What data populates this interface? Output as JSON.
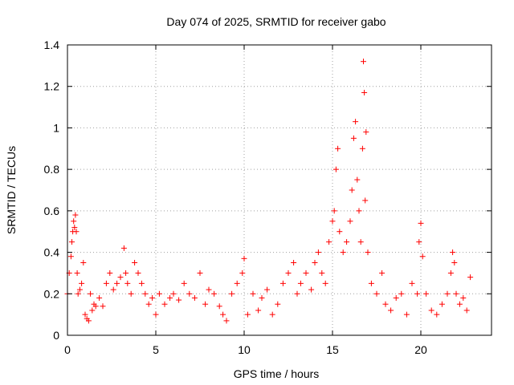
{
  "chart_data": {
    "type": "scatter",
    "title": "Day 074 of 2025, SRMTID for receiver gabo",
    "xlabel": "GPS time / hours",
    "ylabel": "SRMTID / TECUs",
    "xlim": [
      0,
      24
    ],
    "ylim": [
      0,
      1.4
    ],
    "xticks": [
      0,
      5,
      10,
      15,
      20
    ],
    "xtick_labels": [
      "0",
      "5",
      "10",
      "15",
      "20"
    ],
    "yticks": [
      0,
      0.2,
      0.4,
      0.6,
      0.8,
      1,
      1.2,
      1.4
    ],
    "ytick_labels": [
      "0",
      "0.2",
      "0.4",
      "0.6",
      "0.8",
      "1",
      "1.2",
      "1.4"
    ],
    "grid": true,
    "marker": "+",
    "color": "#ff0000",
    "series": [
      {
        "name": "SRMTID",
        "x": [
          0.0,
          0.1,
          0.2,
          0.25,
          0.3,
          0.35,
          0.4,
          0.45,
          0.5,
          0.55,
          0.6,
          0.7,
          0.8,
          0.9,
          1.0,
          1.1,
          1.2,
          1.3,
          1.4,
          1.5,
          1.6,
          1.8,
          2.0,
          2.2,
          2.4,
          2.6,
          2.8,
          3.0,
          3.2,
          3.3,
          3.4,
          3.6,
          3.8,
          4.0,
          4.2,
          4.4,
          4.6,
          4.8,
          5.0,
          5.2,
          5.5,
          5.8,
          6.0,
          6.3,
          6.6,
          6.9,
          7.2,
          7.5,
          7.8,
          8.0,
          8.3,
          8.6,
          8.8,
          9.0,
          9.3,
          9.6,
          9.9,
          10.0,
          10.2,
          10.5,
          10.8,
          11.0,
          11.3,
          11.6,
          11.9,
          12.2,
          12.5,
          12.8,
          13.0,
          13.2,
          13.5,
          13.8,
          14.0,
          14.2,
          14.4,
          14.6,
          14.8,
          15.0,
          15.1,
          15.2,
          15.3,
          15.4,
          15.6,
          15.8,
          16.0,
          16.1,
          16.2,
          16.3,
          16.4,
          16.5,
          16.6,
          16.7,
          16.75,
          16.8,
          16.85,
          16.9,
          17.0,
          17.2,
          17.5,
          17.8,
          18.0,
          18.3,
          18.6,
          18.9,
          19.2,
          19.5,
          19.8,
          19.9,
          20.0,
          20.1,
          20.3,
          20.6,
          20.9,
          21.2,
          21.5,
          21.7,
          21.8,
          21.9,
          22.0,
          22.2,
          22.4,
          22.6,
          22.8
        ],
        "y": [
          0.2,
          0.3,
          0.38,
          0.45,
          0.5,
          0.55,
          0.52,
          0.58,
          0.5,
          0.3,
          0.2,
          0.22,
          0.25,
          0.35,
          0.1,
          0.08,
          0.07,
          0.2,
          0.12,
          0.15,
          0.14,
          0.18,
          0.14,
          0.25,
          0.3,
          0.22,
          0.25,
          0.28,
          0.42,
          0.3,
          0.25,
          0.2,
          0.35,
          0.3,
          0.25,
          0.2,
          0.15,
          0.18,
          0.1,
          0.2,
          0.15,
          0.18,
          0.2,
          0.17,
          0.25,
          0.2,
          0.18,
          0.3,
          0.15,
          0.22,
          0.2,
          0.14,
          0.1,
          0.07,
          0.2,
          0.25,
          0.3,
          0.37,
          0.1,
          0.2,
          0.12,
          0.18,
          0.22,
          0.1,
          0.15,
          0.25,
          0.3,
          0.35,
          0.2,
          0.25,
          0.3,
          0.22,
          0.35,
          0.4,
          0.3,
          0.25,
          0.45,
          0.55,
          0.6,
          0.8,
          0.9,
          0.5,
          0.4,
          0.45,
          0.55,
          0.7,
          0.95,
          1.03,
          0.75,
          0.6,
          0.45,
          0.9,
          1.32,
          1.17,
          0.65,
          0.98,
          0.4,
          0.25,
          0.2,
          0.3,
          0.15,
          0.12,
          0.18,
          0.2,
          0.1,
          0.25,
          0.2,
          0.45,
          0.54,
          0.38,
          0.2,
          0.12,
          0.1,
          0.15,
          0.2,
          0.3,
          0.4,
          0.35,
          0.2,
          0.15,
          0.18,
          0.12,
          0.28
        ]
      }
    ]
  }
}
